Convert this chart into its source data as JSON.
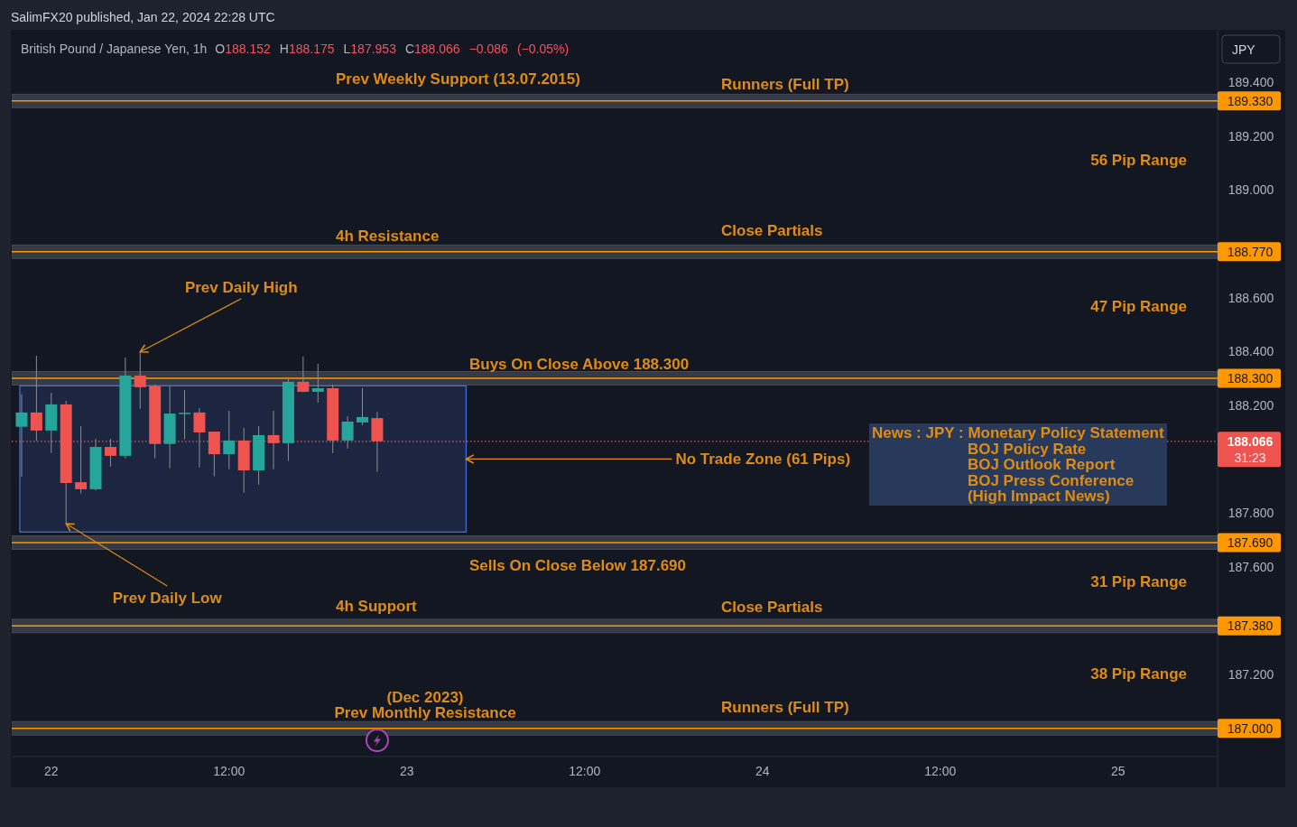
{
  "chart_data": {
    "type": "candlestick",
    "title": "SalimFX20 published, Jan 22, 2024 22:28 UTC",
    "subtitle": "British Pound / Japanese Yen, 1h",
    "ylabel": "JPY",
    "x": [
      "2024-01-21T22:00",
      "2024-01-21T23:00",
      "2024-01-22T00:00",
      "2024-01-22T01:00",
      "2024-01-22T02:00",
      "2024-01-22T03:00",
      "2024-01-22T04:00",
      "2024-01-22T05:00",
      "2024-01-22T06:00",
      "2024-01-22T07:00",
      "2024-01-22T08:00",
      "2024-01-22T09:00",
      "2024-01-22T10:00",
      "2024-01-22T11:00",
      "2024-01-22T12:00",
      "2024-01-22T13:00",
      "2024-01-22T14:00",
      "2024-01-22T15:00",
      "2024-01-22T16:00",
      "2024-01-22T17:00",
      "2024-01-22T18:00",
      "2024-01-22T19:00",
      "2024-01-22T20:00",
      "2024-01-22T21:00",
      "2024-01-22T22:00"
    ],
    "ohlc": [
      [
        188.12,
        188.241,
        187.934,
        188.173
      ],
      [
        188.173,
        188.384,
        188.068,
        188.106
      ],
      [
        188.106,
        188.246,
        188.023,
        188.203
      ],
      [
        188.203,
        188.216,
        187.76,
        187.911
      ],
      [
        187.914,
        188.122,
        187.872,
        187.888
      ],
      [
        187.888,
        188.075,
        187.884,
        188.045
      ],
      [
        188.045,
        188.075,
        187.972,
        188.012
      ],
      [
        188.012,
        188.377,
        188.003,
        188.31
      ],
      [
        188.31,
        188.398,
        188.187,
        188.267
      ],
      [
        188.271,
        188.277,
        188.003,
        188.056
      ],
      [
        188.056,
        188.271,
        187.966,
        188.169
      ],
      [
        188.169,
        188.256,
        188.073,
        188.172
      ],
      [
        188.173,
        188.189,
        187.969,
        188.099
      ],
      [
        188.102,
        188.102,
        187.936,
        188.018
      ],
      [
        188.018,
        188.179,
        187.962,
        188.069
      ],
      [
        188.069,
        188.116,
        187.875,
        187.958
      ],
      [
        187.958,
        188.122,
        187.905,
        188.089
      ],
      [
        188.089,
        188.179,
        187.962,
        188.059
      ],
      [
        188.059,
        188.303,
        187.993,
        188.287
      ],
      [
        188.287,
        188.381,
        188.248,
        188.25
      ],
      [
        188.25,
        188.354,
        188.21,
        188.263
      ],
      [
        188.263,
        188.277,
        188.022,
        188.069
      ],
      [
        188.069,
        188.159,
        188.039,
        188.139
      ],
      [
        188.136,
        188.263,
        188.126,
        188.156
      ],
      [
        188.152,
        188.175,
        187.953,
        188.066
      ]
    ],
    "colors": [
      "#26a69a",
      "#ef5350",
      "#26a69a",
      "#ef5350",
      "#ef5350",
      "#26a69a",
      "#ef5350",
      "#26a69a",
      "#ef5350",
      "#ef5350",
      "#26a69a",
      "#26a69a",
      "#ef5350",
      "#ef5350",
      "#26a69a",
      "#ef5350",
      "#26a69a",
      "#ef5350",
      "#26a69a",
      "#ef5350",
      "#26a69a",
      "#ef5350",
      "#26a69a",
      "#26a69a",
      "#ef5350"
    ],
    "xlim": [
      "2024-01-21T21:20",
      "2024-01-25T06:43"
    ],
    "ylim": [
      186.895,
      189.591
    ],
    "xticks": [
      {
        "value": "2024-01-22T00:00",
        "label": "22"
      },
      {
        "value": "2024-01-22T12:00",
        "label": "12:00"
      },
      {
        "value": "2024-01-23T00:00",
        "label": "23"
      },
      {
        "value": "2024-01-23T12:00",
        "label": "12:00"
      },
      {
        "value": "2024-01-24T00:00",
        "label": "24"
      },
      {
        "value": "2024-01-24T12:00",
        "label": "12:00"
      },
      {
        "value": "2024-01-25T00:00",
        "label": "25"
      }
    ],
    "yticks": [
      {
        "value": 189.4,
        "label": "189.400"
      },
      {
        "value": 189.2,
        "label": "189.200"
      },
      {
        "value": 189.0,
        "label": "189.000"
      },
      {
        "value": 188.6,
        "label": "188.600"
      },
      {
        "value": 188.4,
        "label": "188.400"
      },
      {
        "value": 188.2,
        "label": "188.200"
      },
      {
        "value": 187.8,
        "label": "187.800"
      },
      {
        "value": 187.6,
        "label": "187.600"
      },
      {
        "value": 187.2,
        "label": "187.200"
      }
    ],
    "ref_lines": [
      {
        "axis": "y",
        "value": 189.33,
        "label": "189.330",
        "color": "#ff9800"
      },
      {
        "axis": "y",
        "value": 188.77,
        "label": "188.770",
        "color": "#ff9800"
      },
      {
        "axis": "y",
        "value": 188.3,
        "label": "188.300",
        "color": "#ff9800"
      },
      {
        "axis": "y",
        "value": 187.69,
        "label": "187.690",
        "color": "#ff9800"
      },
      {
        "axis": "y",
        "value": 187.38,
        "label": "187.380",
        "color": "#ff9800"
      },
      {
        "axis": "y",
        "value": 187.0,
        "label": "187.000",
        "color": "#ff9800"
      },
      {
        "axis": "y",
        "value": 188.066,
        "label": "188.066\n31:23",
        "color": "#ef5350",
        "line_style": "dotted"
      }
    ],
    "bands": [
      {
        "axis": "y",
        "from": 189.305,
        "to": 189.355,
        "color": "#363a45"
      },
      {
        "axis": "y",
        "from": 188.745,
        "to": 188.795,
        "color": "#363a45"
      },
      {
        "axis": "y",
        "from": 188.275,
        "to": 188.325,
        "color": "#363a45"
      },
      {
        "axis": "y",
        "from": 187.729,
        "to": 188.272,
        "color": "#1c2640"
      },
      {
        "axis": "y",
        "from": 187.665,
        "to": 187.715,
        "color": "#363a45"
      },
      {
        "axis": "y",
        "from": 187.355,
        "to": 187.405,
        "color": "#363a45"
      },
      {
        "axis": "y",
        "from": 186.975,
        "to": 187.025,
        "color": "#363a45"
      }
    ],
    "annotations": [
      "O188.152 H188.175 L187.953 C188.066 −0.086 (−0.05%)",
      "Prev Weekly Support (13.07.2015)",
      "Runners (Full TP)",
      "56 Pip Range",
      "4h Resistance",
      "Close Partials",
      {
        "text": "Prev Daily High",
        "x": "2024-01-22T06:00",
        "y": 188.398
      },
      "47 Pip Range",
      "Buys On Close Above 188.300",
      {
        "text": "No Trade Zone (61 Pips)",
        "x": "2024-01-23T04:00",
        "y": 188.0
      },
      "News : JPY : Monetary Policy Statement\nBOJ Policy Rate\nBOJ Outlook Report\nBOJ Press Conference\n(High Impact News)",
      "Sells On Close Below 187.690",
      "31 Pip Range",
      {
        "text": "Prev Daily Low",
        "x": "2024-01-22T01:00",
        "y": 187.76
      },
      "4h Support",
      "Close Partials",
      "38 Pip Range",
      "(Dec 2023)\nPrev Monthly Resistance",
      "Runners (Full TP)"
    ]
  }
}
